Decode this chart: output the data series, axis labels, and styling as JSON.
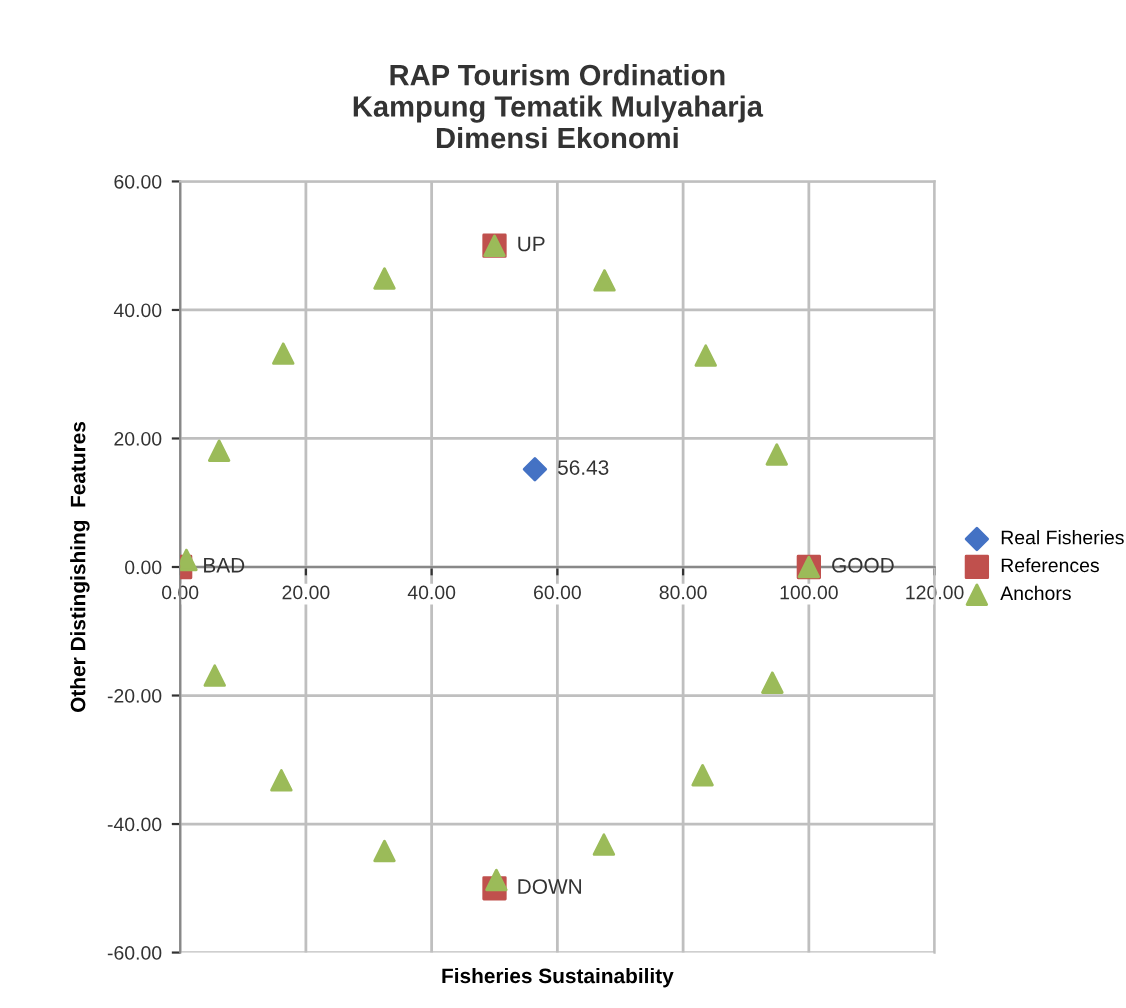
{
  "chart_data": {
    "type": "scatter",
    "title": "RAP Tourism Ordination\nKampung Tematik Mulyaharja\nDimensi Ekonomi",
    "xlabel": "Fisheries Sustainability",
    "ylabel": "Other Distingishing  Features",
    "xlim": [
      0,
      120
    ],
    "ylim": [
      -60,
      60
    ],
    "xticks": [
      {
        "value": 0,
        "label": "0.00"
      },
      {
        "value": 20,
        "label": "20.00"
      },
      {
        "value": 40,
        "label": "40.00"
      },
      {
        "value": 60,
        "label": "60.00"
      },
      {
        "value": 80,
        "label": "80.00"
      },
      {
        "value": 100,
        "label": "100.00"
      },
      {
        "value": 120,
        "label": "120.00"
      }
    ],
    "yticks": [
      {
        "value": -60,
        "label": "-60.00"
      },
      {
        "value": -40,
        "label": "-40.00"
      },
      {
        "value": -20,
        "label": "-20.00"
      },
      {
        "value": 0,
        "label": "0.00"
      },
      {
        "value": 20,
        "label": "20.00"
      },
      {
        "value": 40,
        "label": "40.00"
      },
      {
        "value": 60,
        "label": "60.00"
      }
    ],
    "grid": true,
    "legend": "right",
    "annotations": [
      {
        "text": "56.43",
        "x": 56.43,
        "y": 15.2
      },
      {
        "text": "BAD",
        "x": 0,
        "y": 0
      },
      {
        "text": "GOOD",
        "x": 100,
        "y": 0
      },
      {
        "text": "UP",
        "x": 50,
        "y": 50
      },
      {
        "text": "DOWN",
        "x": 50,
        "y": -50
      }
    ],
    "series": [
      {
        "name": "Real Fisheries",
        "color": "#4472c4",
        "marker": "diamond",
        "x": [
          56.43
        ],
        "values": [
          15.2
        ]
      },
      {
        "name": "References",
        "color": "#c0504d",
        "marker": "square",
        "x": [
          0,
          100,
          50,
          50
        ],
        "values": [
          0,
          0,
          50,
          -50
        ]
      },
      {
        "name": "Anchors",
        "color": "#9bbb59",
        "marker": "triangle",
        "x": [
          1,
          6.2,
          16.4,
          32.5,
          50,
          67.5,
          83.6,
          94.9,
          100,
          5.5,
          16.1,
          32.5,
          50.3,
          67.4,
          83.1,
          94.2
        ],
        "values": [
          1.1,
          18.1,
          33.2,
          44.9,
          50,
          44.6,
          32.9,
          17.5,
          0,
          -16.9,
          -33.2,
          -44.2,
          -48.7,
          -43.2,
          -32.4,
          -18.0
        ]
      }
    ]
  }
}
